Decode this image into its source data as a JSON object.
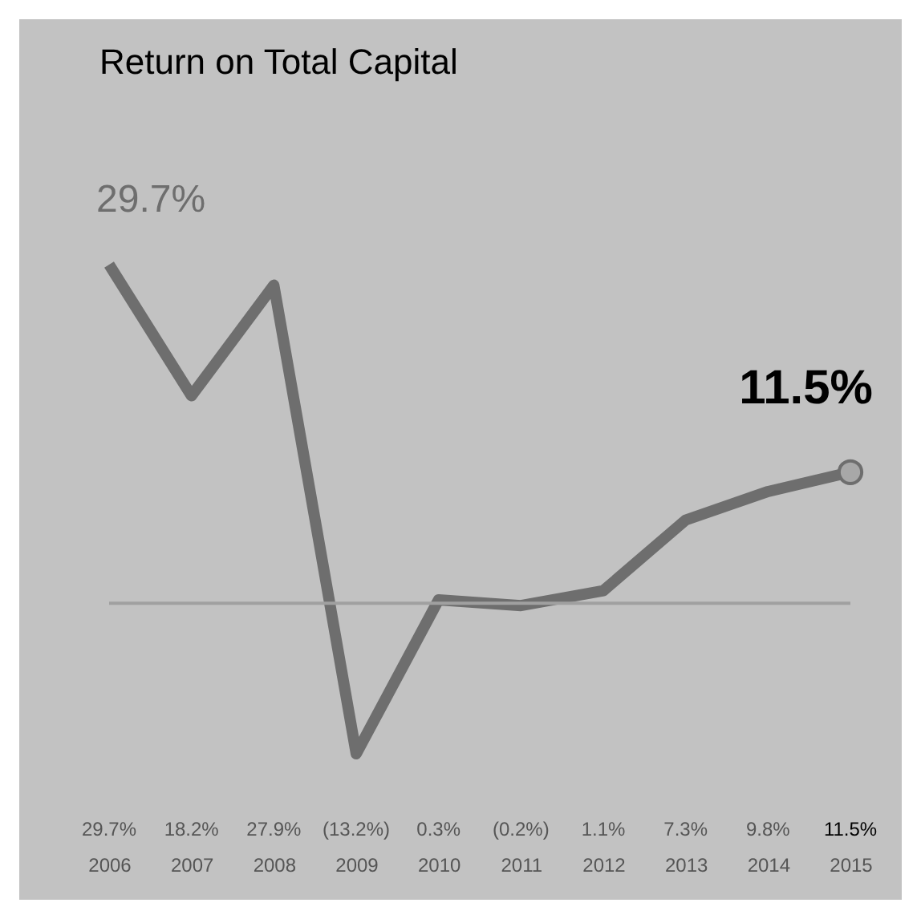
{
  "chart_data": {
    "type": "line",
    "title": "Return on Total Capital",
    "categories": [
      "2006",
      "2007",
      "2008",
      "2009",
      "2010",
      "2011",
      "2012",
      "2013",
      "2014",
      "2015"
    ],
    "series": [
      {
        "color": "#6e6e6e",
        "values": [
          29.7,
          18.2,
          27.9,
          -13.2,
          0.3,
          -0.2,
          1.1,
          7.3,
          9.8,
          11.5
        ],
        "value_labels": [
          "29.7%",
          "18.2%",
          "27.9%",
          "(13.2%)",
          "0.3%",
          "(0.2%)",
          "1.1%",
          "7.3%",
          "9.8%",
          "11.5%"
        ]
      }
    ],
    "annotations": [
      {
        "text": "29.7%",
        "x": "2006",
        "y": 29.7
      },
      {
        "text": "11.5%",
        "x": "2015",
        "y": 11.5
      }
    ],
    "ref_lines": [
      {
        "axis": "y",
        "value": 0,
        "color": "#a0a0a0"
      }
    ],
    "tick_labels": "x",
    "grid": false
  }
}
